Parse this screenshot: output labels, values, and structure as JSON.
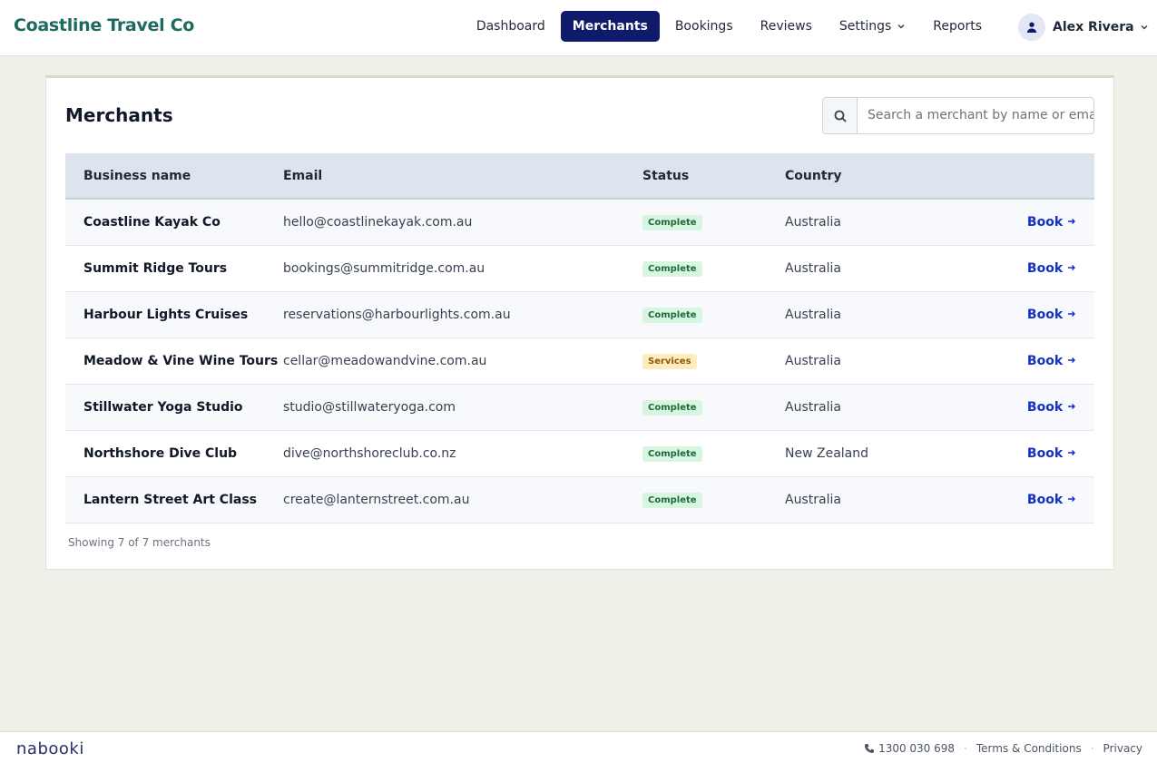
{
  "header": {
    "brand": "Coastline Travel Co",
    "nav": [
      {
        "label": "Dashboard"
      },
      {
        "label": "Merchants",
        "active": true
      },
      {
        "label": "Bookings"
      },
      {
        "label": "Reviews"
      },
      {
        "label": "Settings",
        "dropdown": true
      },
      {
        "label": "Reports"
      }
    ],
    "user": "Alex Rivera"
  },
  "panel": {
    "title": "Merchants",
    "search_placeholder": "Search a merchant by name or email",
    "table": {
      "columns": [
        "Business name",
        "Email",
        "Status",
        "Country"
      ],
      "rows": [
        {
          "business_name": "Coastline Kayak Co",
          "email": "hello@coastlinekayak.com.au",
          "status": "Complete",
          "status_tone": "success",
          "country": "Australia",
          "action": "Book"
        },
        {
          "business_name": "Summit Ridge Tours",
          "email": "bookings@summitridge.com.au",
          "status": "Complete",
          "status_tone": "success",
          "country": "Australia",
          "action": "Book"
        },
        {
          "business_name": "Harbour Lights Cruises",
          "email": "reservations@harbourlights.com.au",
          "status": "Complete",
          "status_tone": "success",
          "country": "Australia",
          "action": "Book"
        },
        {
          "business_name": "Meadow & Vine Wine Tours",
          "email": "cellar@meadowandvine.com.au",
          "status": "Services",
          "status_tone": "warning",
          "country": "Australia",
          "action": "Book"
        },
        {
          "business_name": "Stillwater Yoga Studio",
          "email": "studio@stillwateryoga.com",
          "status": "Complete",
          "status_tone": "success",
          "country": "Australia",
          "action": "Book"
        },
        {
          "business_name": "Northshore Dive Club",
          "email": "dive@northshoreclub.co.nz",
          "status": "Complete",
          "status_tone": "success",
          "country": "New Zealand",
          "action": "Book"
        },
        {
          "business_name": "Lantern Street Art Class",
          "email": "create@lanternstreet.com.au",
          "status": "Complete",
          "status_tone": "success",
          "country": "Australia",
          "action": "Book"
        }
      ]
    },
    "summary": "Showing 7 of 7 merchants"
  },
  "footer": {
    "logo": "nabooki",
    "phone": "1300 030 698",
    "links": [
      "Terms & Conditions",
      "Privacy"
    ]
  }
}
